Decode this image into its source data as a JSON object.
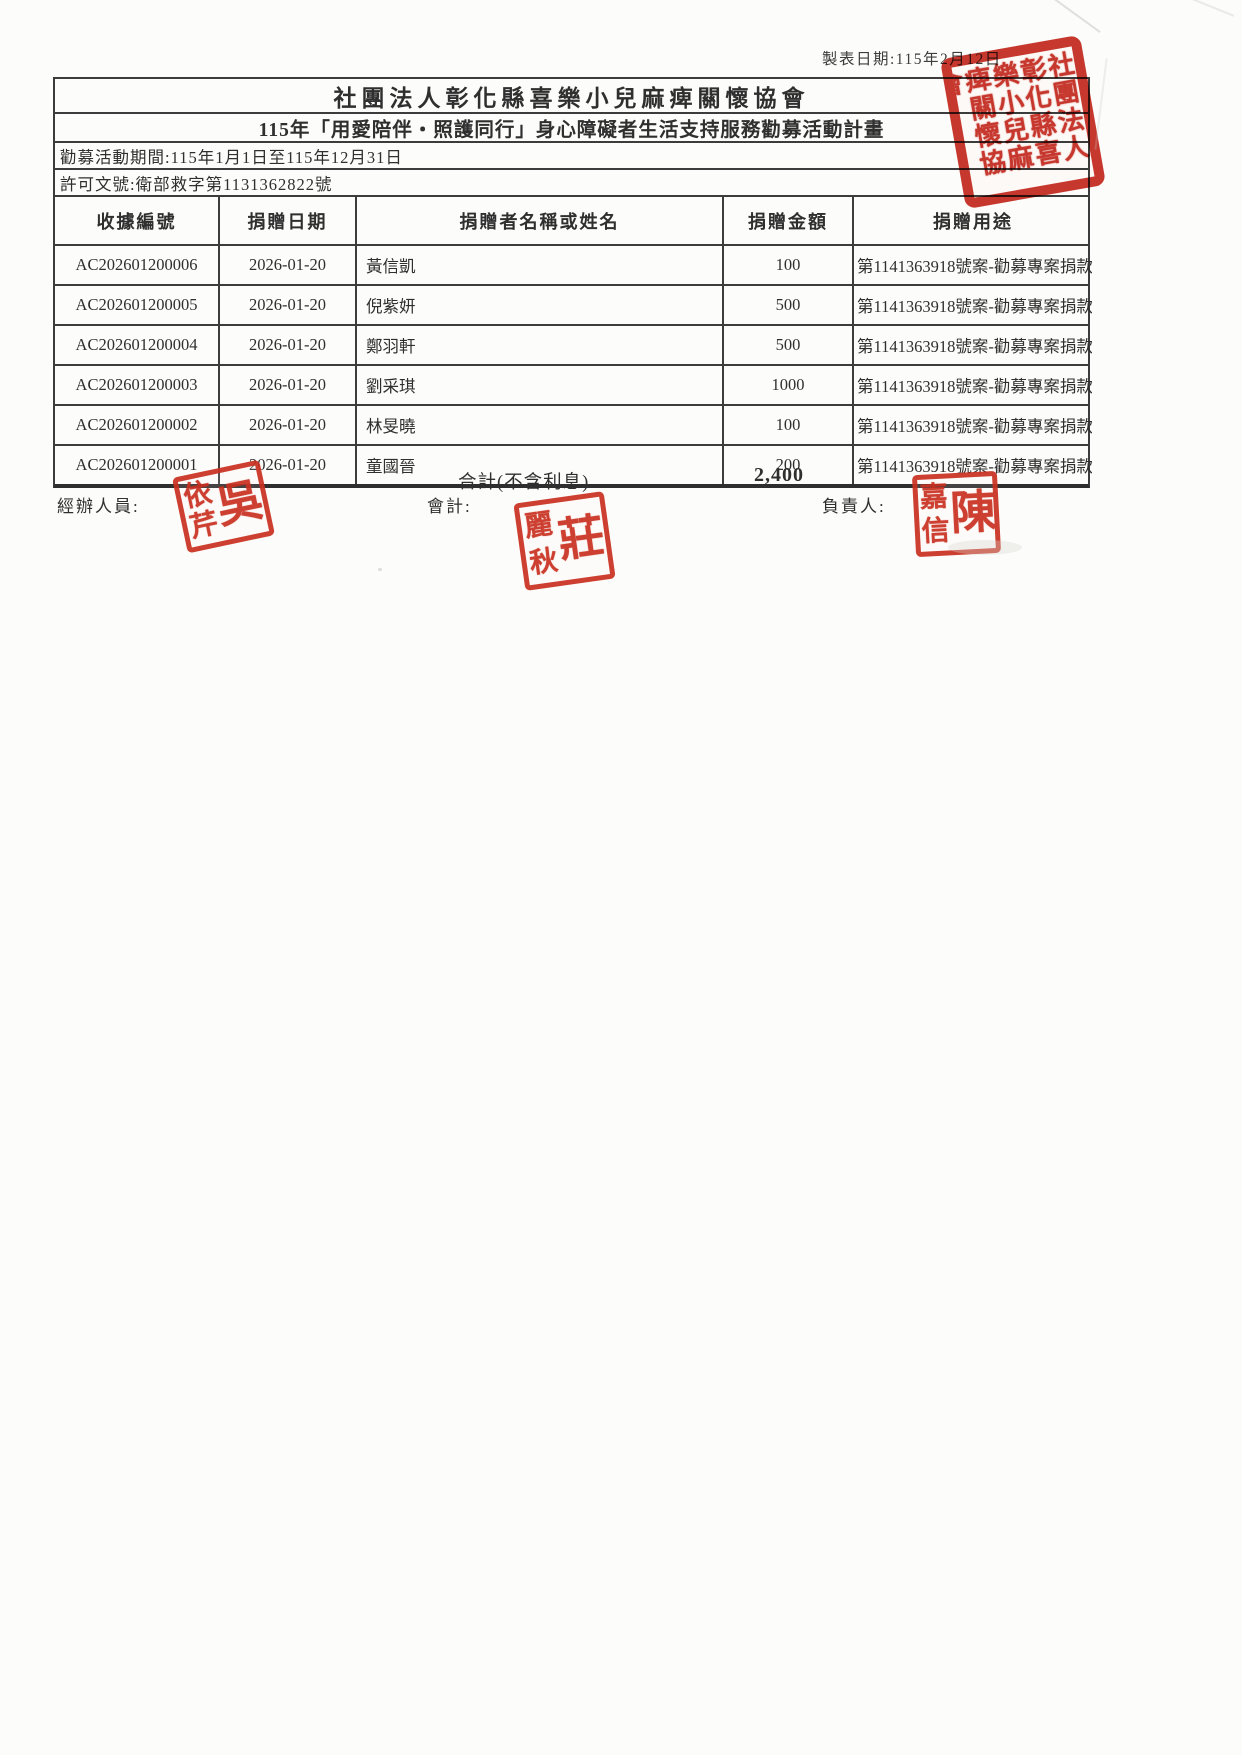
{
  "page": {
    "made_date": "製表日期:115年2月12日"
  },
  "header": {
    "org_name": "社團法人彰化縣喜樂小兒麻痺關懷協會",
    "campaign_title": "115年「用愛陪伴・照護同行」身心障礙者生活支持服務勸募活動計畫",
    "period": "勸募活動期間:115年1月1日至115年12月31日",
    "permit_no": "許可文號:衛部救字第1131362822號"
  },
  "table": {
    "columns": [
      "收據編號",
      "捐贈日期",
      "捐贈者名稱或姓名",
      "捐贈金額",
      "捐贈用途"
    ],
    "rows": [
      [
        "AC202601200006",
        "2026-01-20",
        "黃信凱",
        "100",
        "第1141363918號案-勸募專案捐款"
      ],
      [
        "AC202601200005",
        "2026-01-20",
        "倪紫妍",
        "500",
        "第1141363918號案-勸募專案捐款"
      ],
      [
        "AC202601200004",
        "2026-01-20",
        "鄭羽軒",
        "500",
        "第1141363918號案-勸募專案捐款"
      ],
      [
        "AC202601200003",
        "2026-01-20",
        "劉采琪",
        "1000",
        "第1141363918號案-勸募專案捐款"
      ],
      [
        "AC202601200002",
        "2026-01-20",
        "林旻曉",
        "100",
        "第1141363918號案-勸募專案捐款"
      ],
      [
        "AC202601200001",
        "2026-01-20",
        "童國晉",
        "200",
        "第1141363918號案-勸募專案捐款"
      ]
    ]
  },
  "summary": {
    "total_label": "合計(不含利息)",
    "total_value": "2,400"
  },
  "signatures": {
    "handler_label": "經辦人員:",
    "accountant_label": "會計:",
    "manager_label": "負責人:",
    "handler_stamp": {
      "surname": "吳",
      "given1": "依",
      "given2": "芹"
    },
    "accountant_stamp": {
      "surname": "莊",
      "given1": "麗",
      "given2": "秋"
    },
    "manager_stamp": {
      "surname": "陳",
      "given1": "嘉",
      "given2": "信"
    }
  },
  "org_seal": {
    "text": "社團法人彰化縣喜樂小兒麻痺關懷協會"
  },
  "colors": {
    "seal_red": "#c5271d",
    "stamp_red": "#c93122",
    "ink": "#2f2f2f",
    "line": "#3c3c3c"
  }
}
